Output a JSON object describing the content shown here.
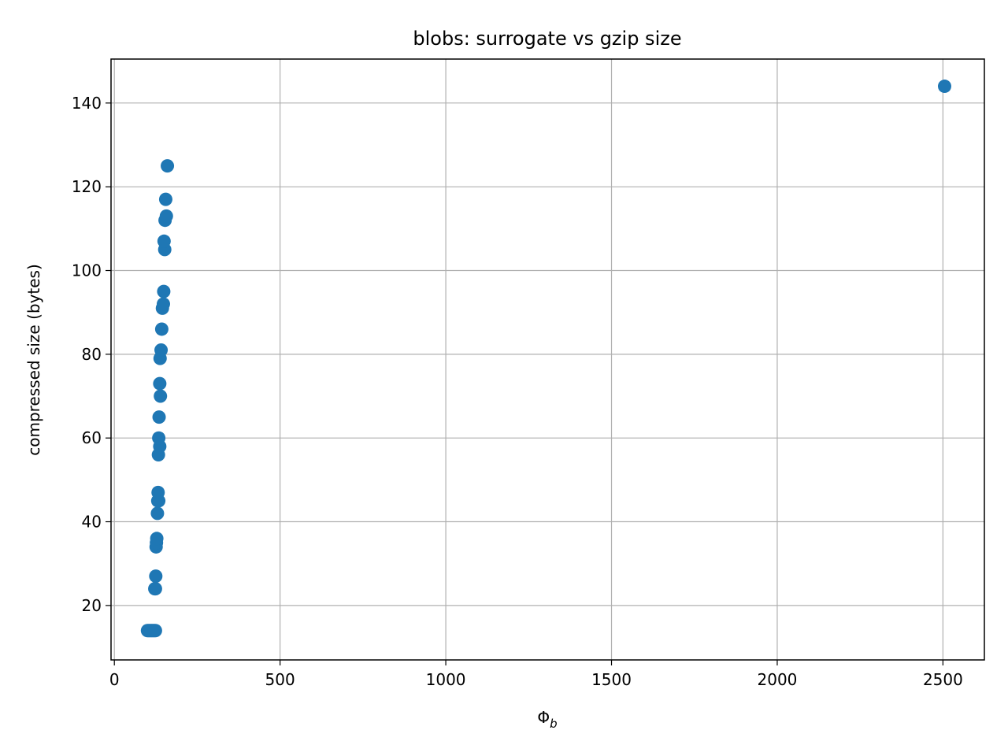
{
  "chart_data": {
    "type": "scatter",
    "title": "blobs: surrogate vs gzip size",
    "xlabel": "Φ",
    "xlabel_sub": "b",
    "ylabel": "compressed size (bytes)",
    "xlim": [
      -10,
      2625
    ],
    "ylim": [
      7,
      150.5
    ],
    "xticks": [
      0,
      500,
      1000,
      1500,
      2000,
      2500
    ],
    "yticks": [
      20,
      40,
      60,
      80,
      100,
      120,
      140
    ],
    "grid": true,
    "marker_color": "#1f77b4",
    "points": [
      {
        "x": 100,
        "y": 14
      },
      {
        "x": 104,
        "y": 14
      },
      {
        "x": 108,
        "y": 14
      },
      {
        "x": 112,
        "y": 14
      },
      {
        "x": 116,
        "y": 14
      },
      {
        "x": 120,
        "y": 14
      },
      {
        "x": 124,
        "y": 14
      },
      {
        "x": 122,
        "y": 24
      },
      {
        "x": 124,
        "y": 24
      },
      {
        "x": 125,
        "y": 27
      },
      {
        "x": 126,
        "y": 34
      },
      {
        "x": 127,
        "y": 35
      },
      {
        "x": 128,
        "y": 36
      },
      {
        "x": 130,
        "y": 42
      },
      {
        "x": 131,
        "y": 45
      },
      {
        "x": 134,
        "y": 45
      },
      {
        "x": 132,
        "y": 47
      },
      {
        "x": 133,
        "y": 56
      },
      {
        "x": 137,
        "y": 58
      },
      {
        "x": 134,
        "y": 60
      },
      {
        "x": 135,
        "y": 65
      },
      {
        "x": 139,
        "y": 70
      },
      {
        "x": 137,
        "y": 73
      },
      {
        "x": 138,
        "y": 79
      },
      {
        "x": 141,
        "y": 81
      },
      {
        "x": 143,
        "y": 86
      },
      {
        "x": 145,
        "y": 91
      },
      {
        "x": 148,
        "y": 92
      },
      {
        "x": 149,
        "y": 95
      },
      {
        "x": 152,
        "y": 105
      },
      {
        "x": 150,
        "y": 107
      },
      {
        "x": 153,
        "y": 112
      },
      {
        "x": 157,
        "y": 113
      },
      {
        "x": 155,
        "y": 117
      },
      {
        "x": 160,
        "y": 125
      },
      {
        "x": 2505,
        "y": 144
      }
    ]
  }
}
